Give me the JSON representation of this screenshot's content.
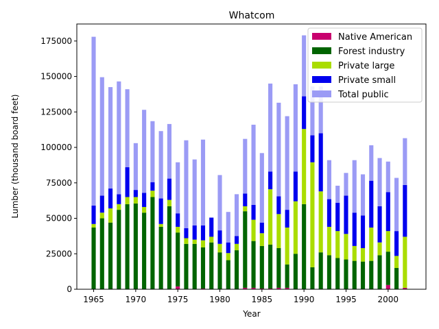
{
  "chart_data": {
    "type": "bar",
    "stacked": true,
    "title": "Whatcom",
    "xlabel": "Year",
    "ylabel": "Lumber (thousand board feet)",
    "xlim": [
      1963,
      2004.5
    ],
    "ylim": [
      0,
      187000
    ],
    "xticks": [
      1965,
      1970,
      1975,
      1980,
      1985,
      1990,
      1995,
      2000
    ],
    "yticks": [
      0,
      25000,
      50000,
      75000,
      100000,
      125000,
      150000,
      175000
    ],
    "ytick_labels": [
      "0",
      "25000",
      "50000",
      "75000",
      "100000",
      "125000",
      "150000",
      "175000"
    ],
    "bar_width_years": 0.5,
    "grid": false,
    "legend_position": "top-right",
    "x": [
      1965,
      1966,
      1967,
      1968,
      1969,
      1970,
      1971,
      1972,
      1973,
      1974,
      1975,
      1976,
      1977,
      1978,
      1979,
      1980,
      1981,
      1982,
      1983,
      1984,
      1985,
      1986,
      1987,
      1988,
      1989,
      1990,
      1991,
      1992,
      1993,
      1994,
      1995,
      1996,
      1997,
      1998,
      1999,
      2000,
      2001,
      2002
    ],
    "series": [
      {
        "name": "Native American",
        "color": "#c8006e",
        "values": [
          0,
          0,
          0,
          0,
          0,
          0,
          0,
          0,
          0,
          0,
          2000,
          0,
          0,
          500,
          0,
          0,
          0,
          0,
          1000,
          1000,
          500,
          500,
          1000,
          1000,
          0,
          0,
          0,
          0,
          0,
          0,
          0,
          0,
          0,
          0,
          0,
          3000,
          0,
          1000
        ]
      },
      {
        "name": "Forest industry",
        "color": "#006400",
        "values": [
          43500,
          50000,
          47000,
          56000,
          60000,
          60500,
          54000,
          65000,
          44000,
          58500,
          38000,
          32000,
          32000,
          29000,
          33000,
          26000,
          20500,
          27500,
          54000,
          33000,
          30000,
          31000,
          28000,
          16500,
          25000,
          60000,
          15500,
          26000,
          24000,
          22000,
          21000,
          20000,
          19500,
          20000,
          24000,
          23500,
          15000,
          0
        ]
      },
      {
        "name": "Private large",
        "color": "#aadd00",
        "values": [
          2500,
          4000,
          10000,
          4000,
          5000,
          4500,
          4000,
          4500,
          2000,
          4500,
          4000,
          4000,
          3000,
          5000,
          4000,
          6000,
          5000,
          4500,
          3500,
          15000,
          9000,
          39000,
          24000,
          26000,
          37000,
          53000,
          74000,
          43000,
          20000,
          19000,
          18000,
          10500,
          9500,
          23500,
          9000,
          14500,
          8500,
          36000
        ]
      },
      {
        "name": "Private small",
        "color": "#0000ee",
        "values": [
          13000,
          12000,
          14000,
          7000,
          21000,
          5000,
          10000,
          6000,
          18000,
          15000,
          9500,
          7000,
          10000,
          10500,
          13500,
          9500,
          7500,
          5500,
          9000,
          10500,
          7500,
          12500,
          12500,
          12500,
          21000,
          23000,
          19000,
          41000,
          19500,
          20000,
          27000,
          23500,
          23000,
          33000,
          25500,
          27500,
          17500,
          36500
        ]
      },
      {
        "name": "Total public",
        "color": "#9b9bf5",
        "values": [
          119000,
          83500,
          71500,
          79500,
          55000,
          33000,
          58500,
          43000,
          47500,
          38500,
          36000,
          62000,
          46500,
          60500,
          0,
          39000,
          21500,
          29500,
          38500,
          56500,
          49000,
          62000,
          66000,
          66000,
          61500,
          43000,
          34500,
          33000,
          27500,
          12000,
          16000,
          37000,
          29000,
          25000,
          34000,
          21500,
          37500,
          33000
        ]
      }
    ]
  }
}
